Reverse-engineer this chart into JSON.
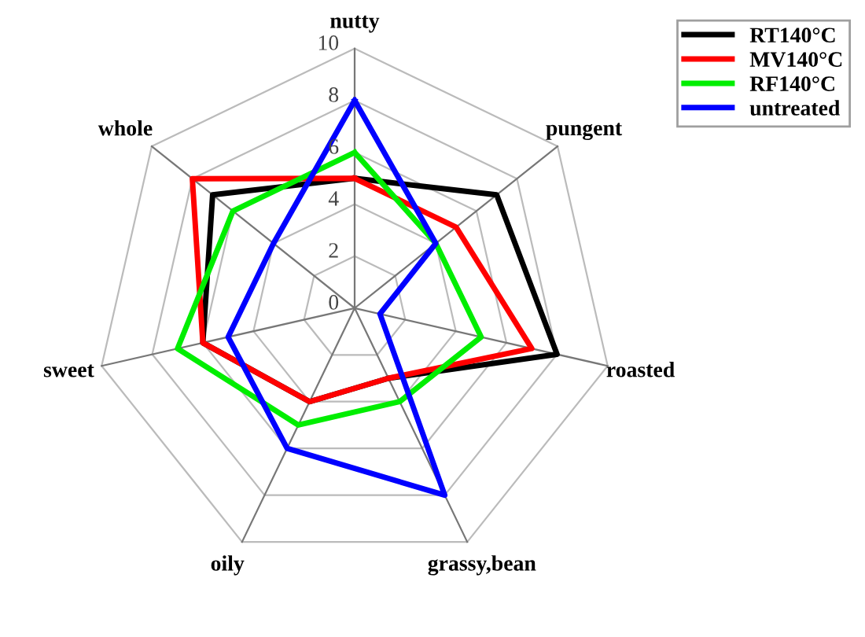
{
  "chart_data": {
    "type": "radar",
    "categories": [
      "nutty",
      "pungent",
      "roasted",
      "grassy,bean",
      "oily",
      "sweet",
      "whole"
    ],
    "series": [
      {
        "name": "RT140°C",
        "color": "#000000",
        "values": [
          5,
          7,
          8,
          3,
          4,
          6,
          7
        ]
      },
      {
        "name": "MV140°C",
        "color": "#ff0000",
        "values": [
          5,
          5,
          7,
          3,
          4,
          6,
          8
        ]
      },
      {
        "name": "RF140°C",
        "color": "#00ee00",
        "values": [
          6,
          4,
          5,
          4,
          5,
          7,
          6
        ]
      },
      {
        "name": "untreated",
        "color": "#0000ff",
        "values": [
          8,
          4,
          1,
          8,
          6,
          5,
          4
        ]
      }
    ],
    "ylim": [
      0,
      10
    ],
    "yticks": [
      0,
      2,
      4,
      6,
      8,
      10
    ],
    "grid": true,
    "legend": "top right",
    "line_style": "solid",
    "marker": "none"
  }
}
